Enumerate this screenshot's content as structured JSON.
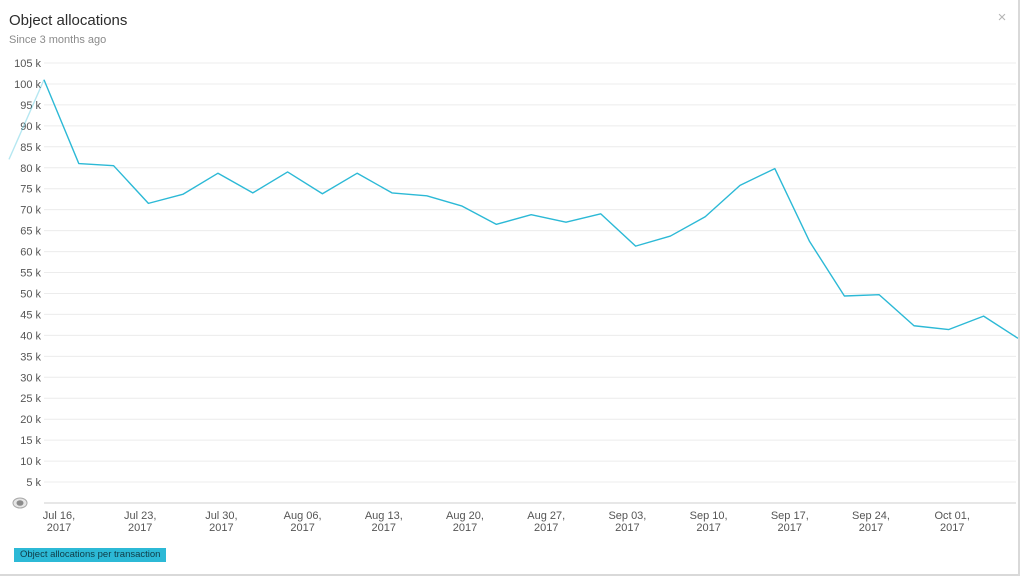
{
  "panel": {
    "title": "Object allocations",
    "subtitle": "Since 3 months ago",
    "close_icon": "×"
  },
  "legend": {
    "label": "Object allocations per transaction",
    "color": "#2cb9d6"
  },
  "chart_data": {
    "type": "line",
    "title": "Object allocations",
    "subtitle": "Since 3 months ago",
    "xlabel": "",
    "ylabel": "",
    "ylim": [
      0,
      105000
    ],
    "yticks": [
      0,
      5000,
      10000,
      15000,
      20000,
      25000,
      30000,
      35000,
      40000,
      45000,
      50000,
      55000,
      60000,
      65000,
      70000,
      75000,
      80000,
      85000,
      90000,
      95000,
      100000,
      105000
    ],
    "ytick_labels": [
      "",
      "5 k",
      "10 k",
      "15 k",
      "20 k",
      "25 k",
      "30 k",
      "35 k",
      "40 k",
      "45 k",
      "50 k",
      "55 k",
      "60 k",
      "65 k",
      "70 k",
      "75 k",
      "80 k",
      "85 k",
      "90 k",
      "95 k",
      "100 k",
      "105 k"
    ],
    "xlim": [
      "2017-07-16",
      "2017-10-06"
    ],
    "xticks": [
      {
        "date": "2017-07-16",
        "line1": "Jul 16,",
        "line2": "2017"
      },
      {
        "date": "2017-07-23",
        "line1": "Jul 23,",
        "line2": "2017"
      },
      {
        "date": "2017-07-30",
        "line1": "Jul 30,",
        "line2": "2017"
      },
      {
        "date": "2017-08-06",
        "line1": "Aug 06,",
        "line2": "2017"
      },
      {
        "date": "2017-08-13",
        "line1": "Aug 13,",
        "line2": "2017"
      },
      {
        "date": "2017-08-20",
        "line1": "Aug 20,",
        "line2": "2017"
      },
      {
        "date": "2017-08-27",
        "line1": "Aug 27,",
        "line2": "2017"
      },
      {
        "date": "2017-09-03",
        "line1": "Sep 03,",
        "line2": "2017"
      },
      {
        "date": "2017-09-10",
        "line1": "Sep 10,",
        "line2": "2017"
      },
      {
        "date": "2017-09-17",
        "line1": "Sep 17,",
        "line2": "2017"
      },
      {
        "date": "2017-09-24",
        "line1": "Sep 24,",
        "line2": "2017"
      },
      {
        "date": "2017-10-01",
        "line1": "Oct 01,",
        "line2": "2017"
      }
    ],
    "grid": true,
    "legend_position": "bottom-left",
    "series": [
      {
        "name": "Object allocations per transaction",
        "color": "#2cb9d6",
        "points": [
          {
            "x": "2017-07-16",
            "y": 101000
          },
          {
            "x": "2017-07-19",
            "y": 81000
          },
          {
            "x": "2017-07-22",
            "y": 80500
          },
          {
            "x": "2017-07-25",
            "y": 71500
          },
          {
            "x": "2017-07-28",
            "y": 73700
          },
          {
            "x": "2017-07-31",
            "y": 78700
          },
          {
            "x": "2017-08-03",
            "y": 74000
          },
          {
            "x": "2017-08-06",
            "y": 79000
          },
          {
            "x": "2017-08-09",
            "y": 73800
          },
          {
            "x": "2017-08-12",
            "y": 78700
          },
          {
            "x": "2017-08-15",
            "y": 74000
          },
          {
            "x": "2017-08-18",
            "y": 73300
          },
          {
            "x": "2017-08-21",
            "y": 70900
          },
          {
            "x": "2017-08-24",
            "y": 66500
          },
          {
            "x": "2017-08-27",
            "y": 68800
          },
          {
            "x": "2017-08-30",
            "y": 67000
          },
          {
            "x": "2017-09-02",
            "y": 69000
          },
          {
            "x": "2017-09-05",
            "y": 61300
          },
          {
            "x": "2017-09-08",
            "y": 63700
          },
          {
            "x": "2017-09-11",
            "y": 68300
          },
          {
            "x": "2017-09-14",
            "y": 75800
          },
          {
            "x": "2017-09-17",
            "y": 79800
          },
          {
            "x": "2017-09-20",
            "y": 62400
          },
          {
            "x": "2017-09-23",
            "y": 49400
          },
          {
            "x": "2017-09-26",
            "y": 49700
          },
          {
            "x": "2017-09-29",
            "y": 42300
          },
          {
            "x": "2017-10-02",
            "y": 41400
          },
          {
            "x": "2017-10-05",
            "y": 44600
          },
          {
            "x": "2017-10-08",
            "y": 39300
          }
        ]
      }
    ]
  }
}
